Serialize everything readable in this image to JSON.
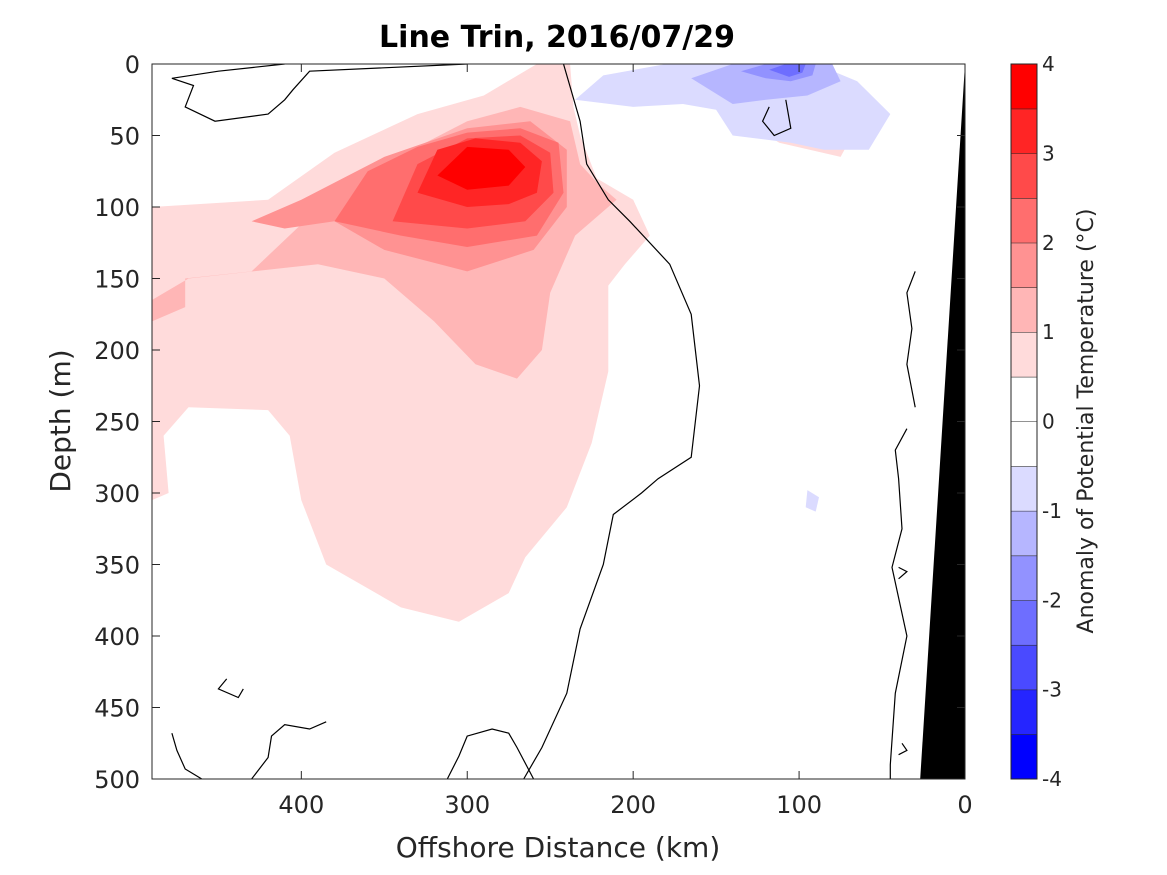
{
  "chart_data": {
    "type": "heatmap",
    "title": "Line Trin, 2016/07/29",
    "xlabel": "Offshore Distance (km)",
    "ylabel": "Depth (m)",
    "colorbar_label": "Anomaly of Potential Temperature (°C)",
    "xlim": [
      490,
      0
    ],
    "ylim": [
      500,
      0
    ],
    "x_ticks": [
      400,
      300,
      200,
      100,
      0
    ],
    "y_ticks": [
      0,
      50,
      100,
      150,
      200,
      250,
      300,
      350,
      400,
      450,
      500
    ],
    "colorbar": {
      "levels": [
        -4,
        -3.5,
        -3,
        -2.5,
        -2,
        -1.5,
        -1,
        -0.5,
        0,
        0.5,
        1,
        1.5,
        2,
        2.5,
        3,
        3.5,
        4
      ],
      "tick_labels": [
        -4,
        -3,
        -2,
        -1,
        0,
        1,
        2,
        3,
        4
      ],
      "colors": [
        "#0000ff",
        "#2525ff",
        "#4a4aff",
        "#6e6eff",
        "#9292ff",
        "#b6b6ff",
        "#dbdbff",
        "#ffffff",
        "#ffffff",
        "#ffdbdb",
        "#ffb6b6",
        "#ff9292",
        "#ff6e6e",
        "#ff4a4a",
        "#ff2525",
        "#ff0000"
      ]
    },
    "regions": [
      {
        "level": 0.5,
        "points": [
          [
            490,
            100
          ],
          [
            420,
            95
          ],
          [
            380,
            62
          ],
          [
            330,
            35
          ],
          [
            290,
            22
          ],
          [
            258,
            0
          ],
          [
            238,
            0
          ],
          [
            236,
            30
          ],
          [
            232,
            50
          ],
          [
            222,
            80
          ],
          [
            200,
            95
          ],
          [
            190,
            120
          ],
          [
            205,
            140
          ],
          [
            215,
            155
          ],
          [
            215,
            180
          ],
          [
            215,
            215
          ],
          [
            225,
            265
          ],
          [
            240,
            310
          ],
          [
            265,
            345
          ],
          [
            275,
            370
          ],
          [
            305,
            390
          ],
          [
            340,
            380
          ],
          [
            385,
            350
          ],
          [
            400,
            305
          ],
          [
            407,
            260
          ],
          [
            420,
            242
          ],
          [
            468,
            240
          ],
          [
            483,
            260
          ],
          [
            480,
            300
          ],
          [
            490,
            305
          ]
        ]
      },
      {
        "level": 0.5,
        "points": [
          [
            80,
            35
          ],
          [
            100,
            28
          ],
          [
            118,
            18
          ],
          [
            132,
            40
          ],
          [
            112,
            55
          ],
          [
            75,
            65
          ],
          [
            68,
            50
          ]
        ]
      },
      {
        "level": 1.0,
        "points": [
          [
            490,
            180
          ],
          [
            470,
            170
          ],
          [
            470,
            150
          ],
          [
            430,
            145
          ],
          [
            400,
            112
          ],
          [
            350,
            70
          ],
          [
            300,
            40
          ],
          [
            268,
            30
          ],
          [
            238,
            40
          ],
          [
            232,
            70
          ],
          [
            220,
            85
          ],
          [
            210,
            95
          ],
          [
            235,
            120
          ],
          [
            250,
            160
          ],
          [
            255,
            200
          ],
          [
            270,
            220
          ],
          [
            295,
            210
          ],
          [
            320,
            180
          ],
          [
            350,
            150
          ],
          [
            390,
            140
          ],
          [
            468,
            150
          ],
          [
            490,
            165
          ]
        ]
      },
      {
        "level": 1.5,
        "points": [
          [
            430,
            110
          ],
          [
            400,
            95
          ],
          [
            350,
            65
          ],
          [
            300,
            45
          ],
          [
            262,
            40
          ],
          [
            240,
            60
          ],
          [
            240,
            100
          ],
          [
            260,
            130
          ],
          [
            300,
            145
          ],
          [
            350,
            130
          ],
          [
            380,
            110
          ],
          [
            410,
            115
          ]
        ]
      },
      {
        "level": 2.0,
        "points": [
          [
            380,
            110
          ],
          [
            360,
            75
          ],
          [
            330,
            58
          ],
          [
            300,
            48
          ],
          [
            268,
            45
          ],
          [
            245,
            55
          ],
          [
            242,
            90
          ],
          [
            258,
            120
          ],
          [
            300,
            128
          ],
          [
            340,
            120
          ]
        ]
      },
      {
        "level": 2.5,
        "points": [
          [
            345,
            110
          ],
          [
            330,
            70
          ],
          [
            300,
            52
          ],
          [
            268,
            50
          ],
          [
            250,
            62
          ],
          [
            248,
            90
          ],
          [
            265,
            110
          ],
          [
            300,
            115
          ]
        ]
      },
      {
        "level": 3.0,
        "points": [
          [
            330,
            90
          ],
          [
            318,
            60
          ],
          [
            295,
            52
          ],
          [
            268,
            55
          ],
          [
            255,
            68
          ],
          [
            258,
            90
          ],
          [
            275,
            98
          ],
          [
            300,
            100
          ]
        ]
      },
      {
        "level": 3.5,
        "points": [
          [
            318,
            78
          ],
          [
            300,
            58
          ],
          [
            275,
            60
          ],
          [
            265,
            72
          ],
          [
            275,
            85
          ],
          [
            300,
            88
          ]
        ]
      },
      {
        "level": -0.5,
        "points": [
          [
            235,
            25
          ],
          [
            218,
            8
          ],
          [
            180,
            0
          ],
          [
            90,
            0
          ],
          [
            65,
            12
          ],
          [
            45,
            35
          ],
          [
            58,
            60
          ],
          [
            85,
            60
          ],
          [
            105,
            55
          ],
          [
            140,
            50
          ],
          [
            150,
            32
          ],
          [
            170,
            28
          ],
          [
            200,
            30
          ]
        ]
      },
      {
        "level": -0.5,
        "points": [
          [
            95,
            298
          ],
          [
            88,
            303
          ],
          [
            90,
            313
          ],
          [
            96,
            310
          ]
        ]
      },
      {
        "level": -1.0,
        "points": [
          [
            165,
            10
          ],
          [
            140,
            0
          ],
          [
            80,
            0
          ],
          [
            75,
            12
          ],
          [
            95,
            22
          ],
          [
            120,
            25
          ],
          [
            140,
            28
          ]
        ]
      },
      {
        "level": -1.5,
        "points": [
          [
            135,
            5
          ],
          [
            120,
            0
          ],
          [
            90,
            0
          ],
          [
            92,
            8
          ],
          [
            105,
            12
          ],
          [
            120,
            10
          ]
        ]
      },
      {
        "level": -2.0,
        "points": [
          [
            118,
            4
          ],
          [
            108,
            0
          ],
          [
            96,
            0
          ],
          [
            98,
            6
          ],
          [
            106,
            9
          ]
        ]
      }
    ],
    "contours_zero": [
      [
        [
          242,
          0
        ],
        [
          232,
          40
        ],
        [
          228,
          70
        ],
        [
          215,
          95
        ],
        [
          202,
          110
        ],
        [
          178,
          140
        ],
        [
          165,
          175
        ],
        [
          160,
          225
        ],
        [
          165,
          275
        ],
        [
          185,
          290
        ],
        [
          195,
          300
        ],
        [
          212,
          315
        ],
        [
          218,
          350
        ],
        [
          232,
          395
        ],
        [
          240,
          440
        ],
        [
          255,
          478
        ],
        [
          266,
          500
        ]
      ],
      [
        [
          410,
          0
        ],
        [
          450,
          5
        ],
        [
          478,
          10
        ],
        [
          465,
          15
        ],
        [
          470,
          30
        ],
        [
          452,
          40
        ],
        [
          420,
          35
        ],
        [
          410,
          25
        ],
        [
          405,
          18
        ],
        [
          395,
          5
        ],
        [
          300,
          0
        ]
      ],
      [
        [
          108,
          25
        ],
        [
          105,
          45
        ],
        [
          115,
          50
        ],
        [
          122,
          40
        ],
        [
          118,
          30
        ]
      ],
      [
        [
          445,
          430
        ],
        [
          450,
          437
        ],
        [
          438,
          443
        ],
        [
          435,
          437
        ]
      ],
      [
        [
          385,
          460
        ],
        [
          395,
          465
        ],
        [
          410,
          462
        ],
        [
          418,
          470
        ],
        [
          420,
          485
        ],
        [
          430,
          500
        ]
      ],
      [
        [
          260,
          500
        ],
        [
          270,
          478
        ],
        [
          275,
          468
        ],
        [
          285,
          465
        ],
        [
          300,
          470
        ],
        [
          305,
          484
        ],
        [
          312,
          500
        ]
      ],
      [
        [
          460,
          500
        ],
        [
          470,
          493
        ],
        [
          475,
          480
        ],
        [
          478,
          468
        ]
      ],
      [
        [
          35,
          255
        ],
        [
          42,
          270
        ],
        [
          40,
          290
        ],
        [
          38,
          325
        ],
        [
          44,
          352
        ],
        [
          35,
          400
        ],
        [
          42,
          440
        ],
        [
          45,
          490
        ],
        [
          45,
          500
        ]
      ],
      [
        [
          30,
          145
        ],
        [
          35,
          160
        ],
        [
          32,
          185
        ],
        [
          35,
          210
        ],
        [
          30,
          240
        ]
      ],
      [
        [
          40,
          360
        ],
        [
          35,
          355
        ],
        [
          40,
          352
        ]
      ],
      [
        [
          38,
          475
        ],
        [
          35,
          480
        ],
        [
          40,
          483
        ]
      ]
    ],
    "land": [
      [
        0,
        0
      ],
      [
        27,
        500
      ],
      [
        0,
        500
      ]
    ]
  }
}
